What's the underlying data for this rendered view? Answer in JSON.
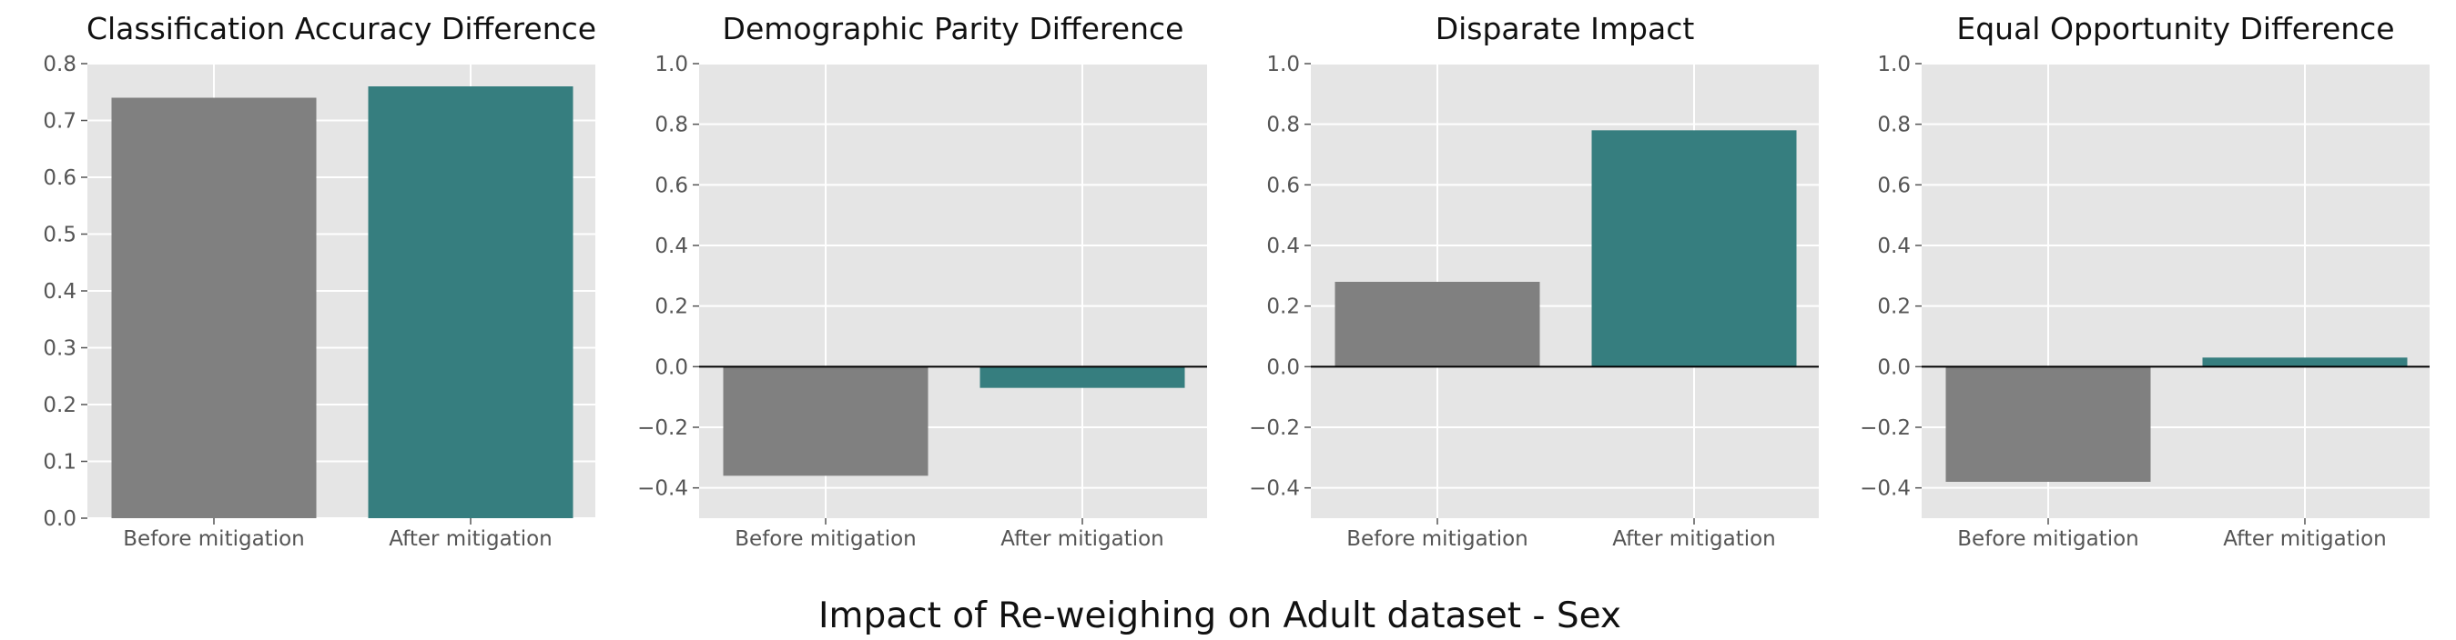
{
  "figure": {
    "suptitle": "Impact of Re-weighing on Adult dataset - Sex"
  },
  "colors": {
    "before": "#808080",
    "after": "#367e7f",
    "panel_background": "#e5e5e5",
    "grid": "#ffffff",
    "zero_line": "#000000"
  },
  "chart_data": [
    {
      "type": "bar",
      "title": "Classification Accuracy Difference",
      "categories": [
        "Before mitigation",
        "After mitigation"
      ],
      "values": [
        0.74,
        0.76
      ],
      "ylim": [
        0,
        0.8
      ],
      "yticks": [
        0.0,
        0.1,
        0.2,
        0.3,
        0.4,
        0.5,
        0.6,
        0.7,
        0.8
      ],
      "ytick_labels": [
        "0.0",
        "0.1",
        "0.2",
        "0.3",
        "0.4",
        "0.5",
        "0.6",
        "0.7",
        "0.8"
      ],
      "zero_line": false,
      "grid": true
    },
    {
      "type": "bar",
      "title": "Demographic Parity Difference",
      "categories": [
        "Before mitigation",
        "After mitigation"
      ],
      "values": [
        -0.36,
        -0.07
      ],
      "ylim": [
        -0.5,
        1.0
      ],
      "yticks": [
        -0.4,
        -0.2,
        0.0,
        0.2,
        0.4,
        0.6,
        0.8,
        1.0
      ],
      "ytick_labels": [
        "−0.4",
        "−0.2",
        "0.0",
        "0.2",
        "0.4",
        "0.6",
        "0.8",
        "1.0"
      ],
      "zero_line": true,
      "grid": true
    },
    {
      "type": "bar",
      "title": "Disparate Impact",
      "categories": [
        "Before mitigation",
        "After mitigation"
      ],
      "values": [
        0.28,
        0.78
      ],
      "ylim": [
        -0.5,
        1.0
      ],
      "yticks": [
        -0.4,
        -0.2,
        0.0,
        0.2,
        0.4,
        0.6,
        0.8,
        1.0
      ],
      "ytick_labels": [
        "−0.4",
        "−0.2",
        "0.0",
        "0.2",
        "0.4",
        "0.6",
        "0.8",
        "1.0"
      ],
      "zero_line": true,
      "grid": true
    },
    {
      "type": "bar",
      "title": "Equal Opportunity Difference",
      "categories": [
        "Before mitigation",
        "After mitigation"
      ],
      "values": [
        -0.38,
        0.03
      ],
      "ylim": [
        -0.5,
        1.0
      ],
      "yticks": [
        -0.4,
        -0.2,
        0.0,
        0.2,
        0.4,
        0.6,
        0.8,
        1.0
      ],
      "ytick_labels": [
        "−0.4",
        "−0.2",
        "0.0",
        "0.2",
        "0.4",
        "0.6",
        "0.8",
        "1.0"
      ],
      "zero_line": true,
      "grid": true
    }
  ]
}
